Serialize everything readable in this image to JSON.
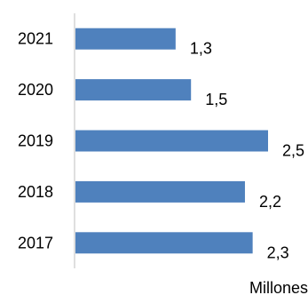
{
  "chart_data": {
    "type": "bar",
    "orientation": "horizontal",
    "categories": [
      "2021",
      "2020",
      "2019",
      "2018",
      "2017"
    ],
    "values": [
      1.3,
      1.5,
      2.5,
      2.2,
      2.3
    ],
    "value_labels": [
      "1,3",
      "1,5",
      "2,5",
      "2,2",
      "2,3"
    ],
    "xlabel": "Millones",
    "ylabel": "",
    "title": "",
    "xlim": [
      0,
      2.5
    ],
    "grid": false,
    "legend": "none",
    "bar_color": "#4f81bd",
    "axis_color": "#bfbfbf"
  }
}
